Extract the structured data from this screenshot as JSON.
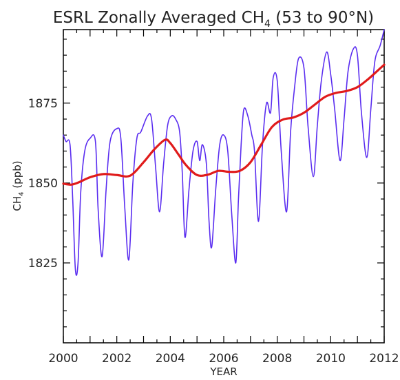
{
  "chart_data": {
    "type": "line",
    "title": {
      "prefix": "ESRL Zonally Averaged CH",
      "subscript": "4",
      "suffix": " (53 to 90°N)"
    },
    "xlabel": "YEAR",
    "ylabel": {
      "prefix": "CH",
      "subscript": "4",
      "suffix": " (ppb)"
    },
    "xlim": [
      2000,
      2012
    ],
    "ylim": [
      1800,
      1898
    ],
    "x_ticks": [
      "2000",
      "2002",
      "2004",
      "2006",
      "2008",
      "2010",
      "2012"
    ],
    "y_ticks": [
      "1825",
      "1850",
      "1875"
    ],
    "grid": false,
    "series": [
      {
        "color": "#5a2df0",
        "x": [
          2000.0,
          2000.1,
          2000.25,
          2000.35,
          2000.45,
          2000.55,
          2000.65,
          2000.8,
          2001.0,
          2001.2,
          2001.3,
          2001.45,
          2001.6,
          2001.75,
          2002.0,
          2002.15,
          2002.3,
          2002.45,
          2002.6,
          2002.75,
          2002.9,
          2003.15,
          2003.3,
          2003.45,
          2003.6,
          2003.75,
          2003.9,
          2004.05,
          2004.2,
          2004.35,
          2004.45,
          2004.55,
          2004.7,
          2004.85,
          2005.0,
          2005.1,
          2005.2,
          2005.35,
          2005.45,
          2005.55,
          2005.7,
          2005.85,
          2006.0,
          2006.15,
          2006.3,
          2006.45,
          2006.55,
          2006.65,
          2006.75,
          2006.9,
          2007.05,
          2007.15,
          2007.3,
          2007.45,
          2007.6,
          2007.75,
          2007.85,
          2008.0,
          2008.15,
          2008.35,
          2008.5,
          2008.65,
          2008.8,
          2009.0,
          2009.15,
          2009.35,
          2009.5,
          2009.65,
          2009.85,
          2010.0,
          2010.15,
          2010.35,
          2010.5,
          2010.65,
          2010.85,
          2011.0,
          2011.15,
          2011.35,
          2011.5,
          2011.65,
          2011.85,
          2012.0
        ],
        "values": [
          1865,
          1863,
          1862,
          1845,
          1823,
          1825,
          1847,
          1860,
          1864,
          1863,
          1842,
          1827,
          1848,
          1863,
          1867,
          1864,
          1842,
          1826,
          1850,
          1864,
          1866,
          1871,
          1870,
          1855,
          1841,
          1856,
          1868,
          1871,
          1870,
          1866,
          1853,
          1833,
          1848,
          1860,
          1863,
          1857,
          1862,
          1856,
          1838,
          1830,
          1848,
          1862,
          1865,
          1860,
          1840,
          1825,
          1845,
          1862,
          1873,
          1871,
          1865,
          1860,
          1838,
          1862,
          1875,
          1872,
          1883,
          1882,
          1860,
          1841,
          1866,
          1880,
          1889,
          1886,
          1868,
          1852,
          1868,
          1882,
          1891,
          1884,
          1873,
          1857,
          1870,
          1885,
          1892,
          1890,
          1872,
          1858,
          1873,
          1888,
          1893,
          1898
        ]
      },
      {
        "color": "#e01b1b",
        "x": [
          2000.0,
          2000.3,
          2000.6,
          2001.0,
          2001.5,
          2002.0,
          2002.5,
          2003.0,
          2003.4,
          2003.8,
          2004.0,
          2004.3,
          2004.6,
          2005.0,
          2005.4,
          2005.8,
          2006.2,
          2006.6,
          2007.0,
          2007.4,
          2007.8,
          2008.2,
          2008.6,
          2009.0,
          2009.4,
          2009.8,
          2010.2,
          2010.6,
          2011.0,
          2011.4,
          2011.8,
          2012.0
        ],
        "values": [
          1849.8,
          1849.5,
          1850.3,
          1851.8,
          1852.8,
          1852.5,
          1852.3,
          1856.5,
          1860.5,
          1863.5,
          1862.5,
          1859.0,
          1855.5,
          1852.5,
          1852.6,
          1853.8,
          1853.5,
          1853.8,
          1856.5,
          1862.0,
          1867.5,
          1869.8,
          1870.5,
          1872.0,
          1874.5,
          1877.0,
          1878.2,
          1878.8,
          1880.0,
          1882.5,
          1885.5,
          1887.0
        ]
      }
    ]
  }
}
